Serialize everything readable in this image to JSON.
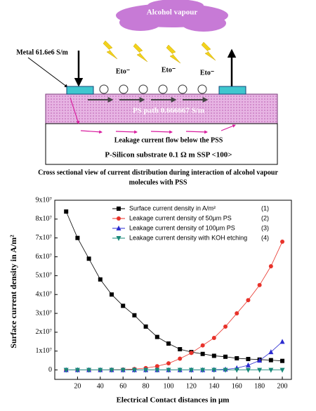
{
  "diagram": {
    "cloud_label": "Alcohol vapour",
    "metal_label": "Metal 61.6e6 S/m",
    "ions": [
      "Eto⁻",
      "Eto⁻",
      "Eto⁻"
    ],
    "ps_label": "PS path 0.666667 S/m",
    "leakage_label": "Leakage current flow below the PSS",
    "substrate_label": "P-Silicon  substrate  0.1 Ω m  SSP <100>",
    "caption": [
      "Cross sectional view of current distribution  during interaction of alcohol vapour",
      "molecules with PSS"
    ]
  },
  "chart_data": {
    "type": "line",
    "x_label": "Electrical Contact distances in μm",
    "y_label": "Surface current density in A/m²",
    "x": [
      10,
      20,
      30,
      40,
      50,
      60,
      70,
      80,
      90,
      100,
      110,
      120,
      130,
      140,
      150,
      160,
      170,
      180,
      190,
      200
    ],
    "xlim": [
      0,
      208
    ],
    "xticks": [
      20,
      40,
      60,
      80,
      100,
      120,
      140,
      160,
      180,
      200
    ],
    "ylim": [
      -5000000,
      90000000
    ],
    "yticks": [
      0,
      {
        "value": 10000000,
        "label": "1x10⁷"
      },
      {
        "value": 20000000,
        "label": "2x10⁷"
      },
      {
        "value": 30000000,
        "label": "3x10⁷"
      },
      {
        "value": 40000000,
        "label": "4x10⁷"
      },
      {
        "value": 50000000,
        "label": "5x10⁷"
      },
      {
        "value": 60000000,
        "label": "6x10⁷"
      },
      {
        "value": 70000000,
        "label": "7x10⁷"
      },
      {
        "value": 80000000,
        "label": "8x10⁷"
      },
      {
        "value": 90000000,
        "label": "9x10⁷"
      }
    ],
    "series": [
      {
        "name": "Surface current density in A/m²",
        "number": "(1)",
        "color": "#000000",
        "marker": "square",
        "values": [
          84000000,
          70000000,
          59000000,
          48000000,
          40000000,
          34000000,
          29000000,
          23000000,
          17500000,
          14000000,
          11000000,
          9500000,
          8500000,
          7500000,
          7000000,
          6200000,
          5800000,
          5500000,
          5200000,
          4800000
        ]
      },
      {
        "name": "Leakage current density of 50μm PS",
        "number": "(2)",
        "color": "#e8322a",
        "marker": "circle",
        "values": [
          0,
          0,
          0,
          0,
          100000,
          200000,
          500000,
          1000000,
          2000000,
          3500000,
          6000000,
          9000000,
          13000000,
          17000000,
          23000000,
          30000000,
          37000000,
          45000000,
          55000000,
          68000000
        ]
      },
      {
        "name": "Leakage current density of 100μm PS",
        "number": "(3)",
        "color": "#2b2bd0",
        "marker": "triangle-up",
        "values": [
          0,
          0,
          0,
          0,
          0,
          0,
          0,
          0,
          0,
          0,
          0,
          0,
          0,
          100000,
          300000,
          1000000,
          2500000,
          5000000,
          9500000,
          15000000
        ]
      },
      {
        "name": "Leakage current density with KOH etching",
        "number": "(4)",
        "color": "#1a8a7a",
        "marker": "triangle-down",
        "values": [
          0,
          0,
          0,
          0,
          0,
          0,
          0,
          0,
          0,
          0,
          0,
          0,
          0,
          0,
          0,
          0,
          0,
          0,
          0,
          0
        ]
      }
    ]
  }
}
